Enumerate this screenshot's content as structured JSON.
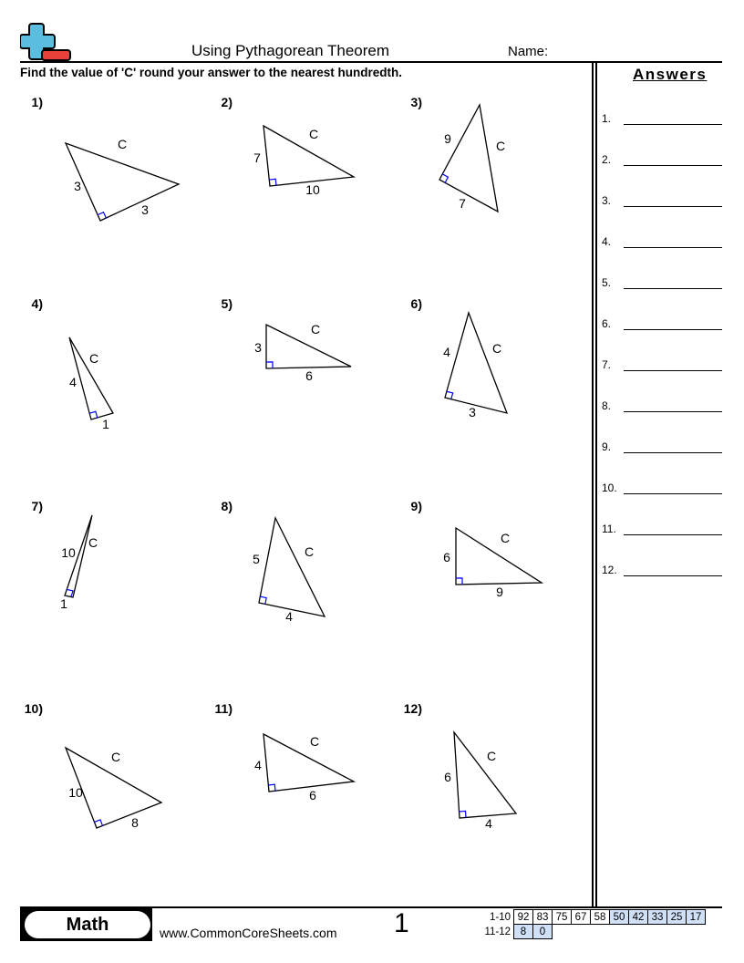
{
  "header": {
    "title": "Using Pythagorean Theorem",
    "name_label": "Name:",
    "instructions": "Find the value of 'C' round your answer to the nearest hundredth.",
    "answers_title": "Answers",
    "logo_icon": "plus-minus-logo",
    "logo_colors": {
      "plus": "#5bbde0",
      "minus": "#e8413c"
    }
  },
  "problems": [
    {
      "number": "1)",
      "labels": [
        "C",
        "3",
        "3"
      ]
    },
    {
      "number": "2)",
      "labels": [
        "C",
        "7",
        "10"
      ]
    },
    {
      "number": "3)",
      "labels": [
        "9",
        "C",
        "7"
      ]
    },
    {
      "number": "4)",
      "labels": [
        "C",
        "4",
        "1"
      ]
    },
    {
      "number": "5)",
      "labels": [
        "C",
        "3",
        "6"
      ]
    },
    {
      "number": "6)",
      "labels": [
        "4",
        "C",
        "3"
      ]
    },
    {
      "number": "7)",
      "labels": [
        "10",
        "C",
        "1"
      ]
    },
    {
      "number": "8)",
      "labels": [
        "5",
        "C",
        "4"
      ]
    },
    {
      "number": "9)",
      "labels": [
        "C",
        "6",
        "9"
      ]
    },
    {
      "number": "10)",
      "labels": [
        "C",
        "10",
        "8"
      ]
    },
    {
      "number": "11)",
      "labels": [
        "C",
        "4",
        "6"
      ]
    },
    {
      "number": "12)",
      "labels": [
        "C",
        "6",
        "4"
      ]
    }
  ],
  "answers": [
    "1.",
    "2.",
    "3.",
    "4.",
    "5.",
    "6.",
    "7.",
    "8.",
    "9.",
    "10.",
    "11.",
    "12."
  ],
  "right_angle_color": "#0000ff",
  "footer": {
    "subject": "Math",
    "website": "www.CommonCoreSheets.com",
    "page": "1",
    "score_rows": [
      {
        "label": "1-10",
        "values": [
          "92",
          "83",
          "75",
          "67",
          "58",
          "50",
          "42",
          "33",
          "25",
          "17"
        ]
      },
      {
        "label": "11-12",
        "values": [
          "8",
          "0"
        ]
      }
    ],
    "highlight_color": "#cfe0f7"
  }
}
